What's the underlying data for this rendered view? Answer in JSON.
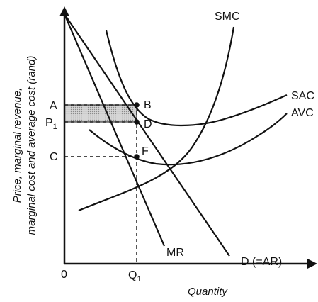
{
  "diagram": {
    "axes": {
      "y_title_line1": "Price, marginal revenue,",
      "y_title_line2": "marginal cost and average cost (rand)",
      "x_title": "Quantity",
      "origin": "0"
    },
    "curves": {
      "smc": "SMC",
      "sac": "SAC",
      "avc": "AVC",
      "mr": "MR",
      "demand": "D (=AR)"
    },
    "axis_labels": {
      "a": "A",
      "p1": "P",
      "p1_sub": "1",
      "c": "C",
      "q1": "Q",
      "q1_sub": "1"
    },
    "points": {
      "b": "B",
      "d": "D",
      "f": "F"
    },
    "colors": {
      "ink": "#111111",
      "profit_area": "#c9c9c9"
    }
  }
}
